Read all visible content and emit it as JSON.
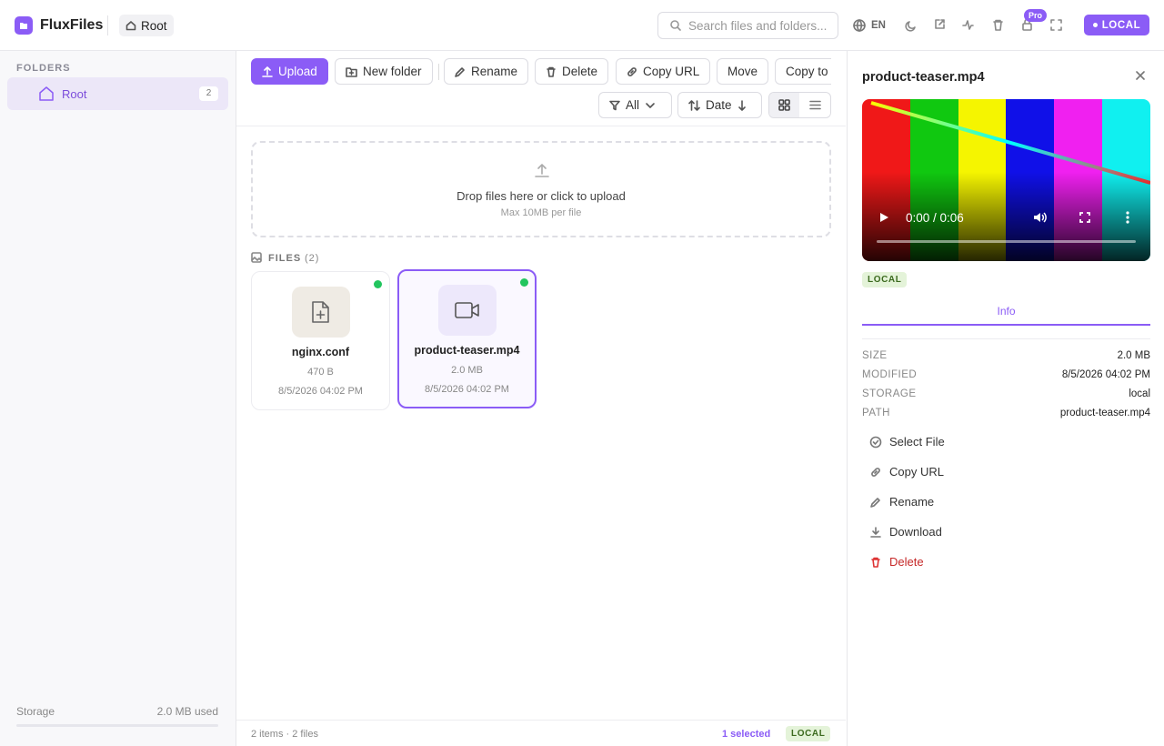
{
  "header": {
    "brand": "FluxFiles",
    "breadcrumb": "Root",
    "search_placeholder": "Search files and folders...",
    "language": "EN",
    "pro_badge": "Pro",
    "storage_badge": "LOCAL"
  },
  "sidebar": {
    "heading": "FOLDERS",
    "folders": [
      {
        "name": "Root",
        "count": 2
      }
    ],
    "storage_label": "Storage",
    "storage_used": "2.0 MB used"
  },
  "toolbar": {
    "actions": [
      "Upload",
      "New folder",
      "Rename",
      "Delete",
      "Copy URL",
      "Move",
      "Copy to"
    ],
    "filter": "All",
    "sort": "Date"
  },
  "dropzone": {
    "title": "Drop files here or click to upload",
    "subtitle": "Max 10MB per file"
  },
  "files_section": {
    "label": "FILES",
    "count": "(2)"
  },
  "files": [
    {
      "name": "nginx.conf",
      "size": "470 B",
      "date": "8/5/2026 04:02 PM"
    },
    {
      "name": "product-teaser.mp4",
      "size": "2.0 MB",
      "date": "8/5/2026 04:02 PM"
    }
  ],
  "footer": {
    "summary": "2 items · 2 files",
    "selected": "1 selected",
    "storage": "LOCAL"
  },
  "detail": {
    "title": "product-teaser.mp4",
    "video_time": "0:00 / 0:06",
    "storage_badge": "LOCAL",
    "tab": "Info",
    "info": [
      {
        "label": "SIZE",
        "value": "2.0 MB"
      },
      {
        "label": "MODIFIED",
        "value": "8/5/2026 04:02 PM"
      },
      {
        "label": "STORAGE",
        "value": "local"
      },
      {
        "label": "PATH",
        "value": "product-teaser.mp4"
      }
    ],
    "actions": [
      "Select File",
      "Copy URL",
      "Rename",
      "Download",
      "Delete"
    ]
  }
}
